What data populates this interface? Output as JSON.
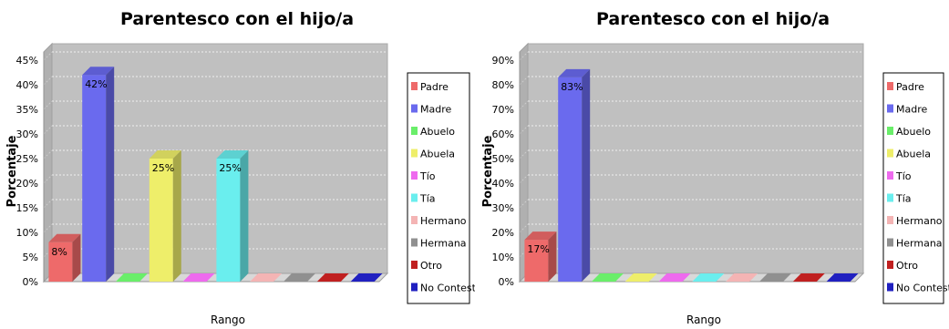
{
  "chart_data": [
    {
      "type": "bar",
      "title": "Parentesco con el hijo/a",
      "xlabel": "Rango",
      "ylabel": "Porcentaje",
      "ylim": [
        0,
        45
      ],
      "ytick_step": 5,
      "yticks": [
        "0%",
        "5%",
        "10%",
        "15%",
        "20%",
        "25%",
        "30%",
        "35%",
        "40%",
        "45%"
      ],
      "categories": [
        "Padre",
        "Madre",
        "Abuelo",
        "Abuela",
        "Tío",
        "Tía",
        "Hermano",
        "Hermana",
        "Otro",
        "No Contestó"
      ],
      "values": [
        8,
        42,
        0,
        25,
        0,
        25,
        0,
        0,
        0,
        0
      ],
      "data_labels": [
        "8%",
        "42%",
        "",
        "25%",
        "",
        "25%",
        "",
        "",
        "",
        ""
      ],
      "colors": [
        "#ee6a6a",
        "#6a6aee",
        "#6aee6a",
        "#eeee6a",
        "#ee6aee",
        "#6aeeee",
        "#f4b4b4",
        "#909090",
        "#c02020",
        "#2020c0"
      ],
      "legend": [
        "Padre",
        "Madre",
        "Abuelo",
        "Abuela",
        "Tío",
        "Tía",
        "Hermano",
        "Hermana",
        "Otro",
        "No Contestó"
      ],
      "legend_position": "right",
      "grid": true
    },
    {
      "type": "bar",
      "title": "Parentesco con el hijo/a",
      "xlabel": "Rango",
      "ylabel": "Porcentaje",
      "ylim": [
        0,
        90
      ],
      "ytick_step": 10,
      "yticks": [
        "0%",
        "10%",
        "20%",
        "30%",
        "40%",
        "50%",
        "60%",
        "70%",
        "80%",
        "90%"
      ],
      "categories": [
        "Padre",
        "Madre",
        "Abuelo",
        "Abuela",
        "Tío",
        "Tía",
        "Hermano",
        "Hermana",
        "Otro",
        "No Contestó"
      ],
      "values": [
        17,
        83,
        0,
        0,
        0,
        0,
        0,
        0,
        0,
        0
      ],
      "data_labels": [
        "17%",
        "83%",
        "",
        "",
        "",
        "",
        "",
        "",
        "",
        ""
      ],
      "colors": [
        "#ee6a6a",
        "#6a6aee",
        "#6aee6a",
        "#eeee6a",
        "#ee6aee",
        "#6aeeee",
        "#f4b4b4",
        "#909090",
        "#c02020",
        "#2020c0"
      ],
      "legend": [
        "Padre",
        "Madre",
        "Abuelo",
        "Abuela",
        "Tío",
        "Tía",
        "Hermano",
        "Hermana",
        "Otro",
        "No Contest"
      ],
      "legend_position": "right",
      "grid": true
    }
  ]
}
